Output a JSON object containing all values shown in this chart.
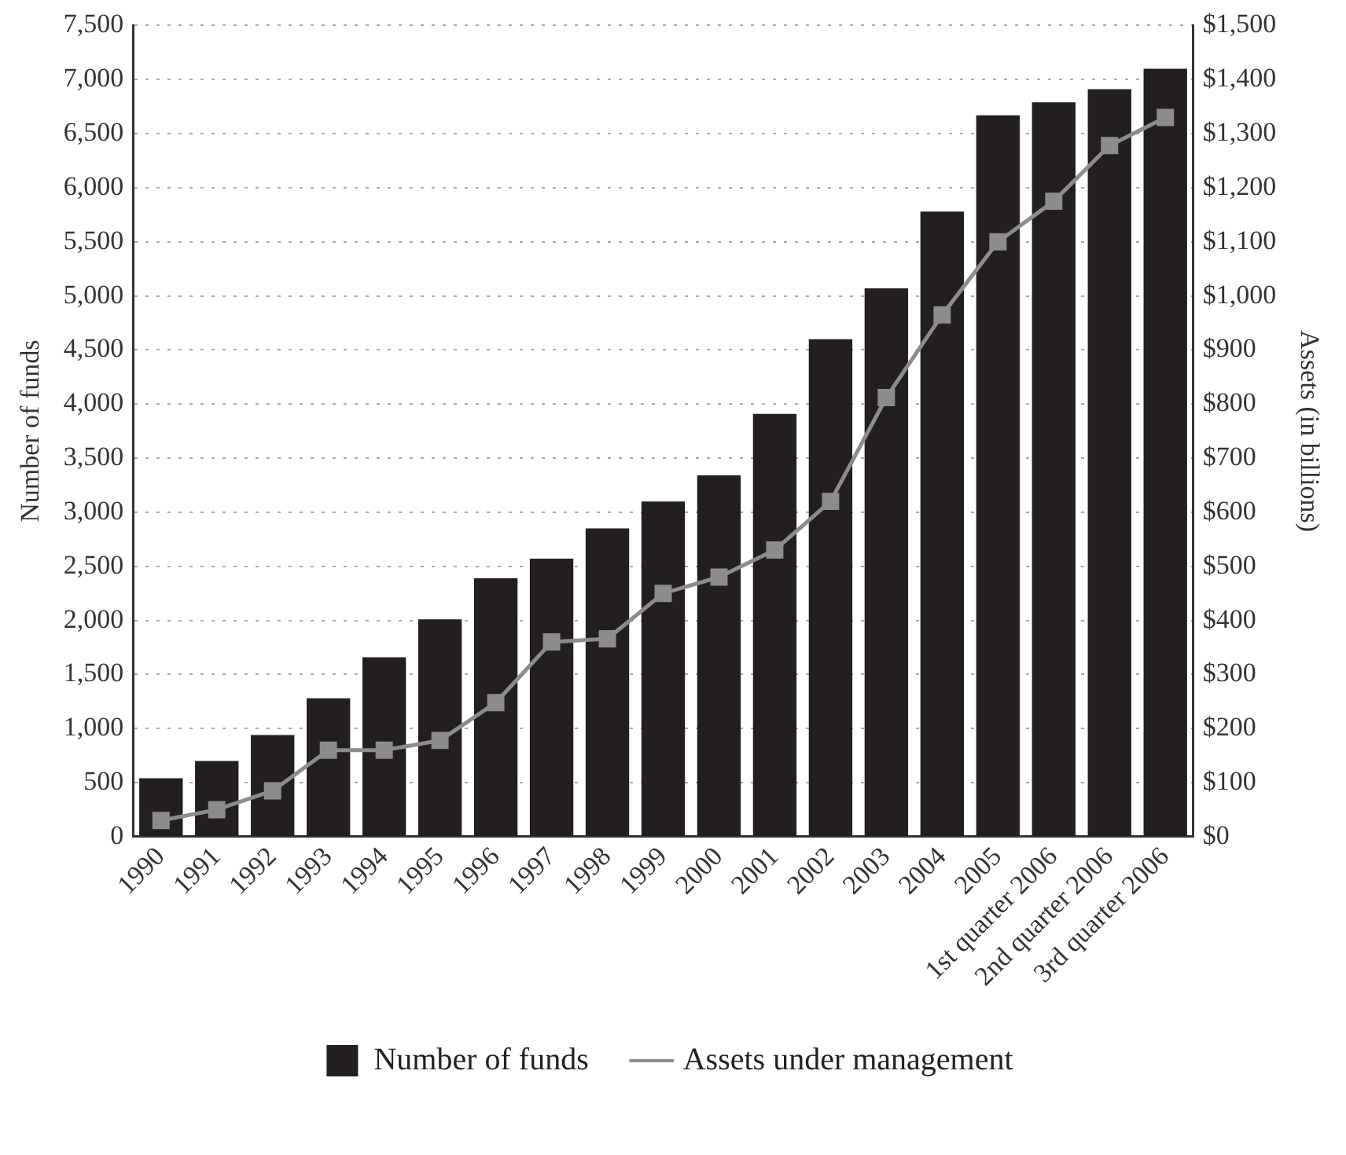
{
  "chart_data": {
    "type": "bar",
    "ylabel": "Number of funds",
    "y2label": "Assets (in billions)",
    "categories": [
      "1990",
      "1991",
      "1992",
      "1993",
      "1994",
      "1995",
      "1996",
      "1997",
      "1998",
      "1999",
      "2000",
      "2001",
      "2002",
      "2003",
      "2004",
      "2005",
      "1st quarter 2006",
      "2nd quarter 2006",
      "3rd quarter 2006"
    ],
    "series": [
      {
        "name": "Number of funds",
        "color": "#231f20",
        "values": [
          540,
          700,
          940,
          1280,
          1660,
          2010,
          2390,
          2570,
          2850,
          3100,
          3340,
          3910,
          4600,
          5070,
          5780,
          6670,
          6790,
          6910,
          7100
        ]
      },
      {
        "name": "Assets under management",
        "type": "line",
        "axis": "y2",
        "color": "#8c8c8c",
        "marker": "square",
        "values": [
          30,
          50,
          85,
          160,
          160,
          178,
          248,
          360,
          366,
          450,
          480,
          530,
          620,
          812,
          965,
          1100,
          1175,
          1278,
          1330
        ]
      }
    ],
    "ylim": [
      0,
      7500
    ],
    "yticks": [
      0,
      500,
      {
        "value": 1000,
        "label": "1,000"
      },
      {
        "value": 1500,
        "label": "1,500"
      },
      {
        "value": 2000,
        "label": "2,000"
      },
      {
        "value": 2500,
        "label": "2,500"
      },
      {
        "value": 3000,
        "label": "3,000"
      },
      {
        "value": 3500,
        "label": "3,500"
      },
      {
        "value": 4000,
        "label": "4,000"
      },
      {
        "value": 4500,
        "label": "4,500"
      },
      {
        "value": 5000,
        "label": "5,000"
      },
      {
        "value": 5500,
        "label": "5,500"
      },
      {
        "value": 6000,
        "label": "6,000"
      },
      {
        "value": 6500,
        "label": "6,500"
      },
      {
        "value": 7000,
        "label": "7,000"
      },
      {
        "value": 7500,
        "label": "7,500"
      }
    ],
    "y2lim": [
      0,
      1500
    ],
    "y2ticks": [
      {
        "value": 0,
        "label": "$0"
      },
      {
        "value": 100,
        "label": "$100"
      },
      {
        "value": 200,
        "label": "$200"
      },
      {
        "value": 300,
        "label": "$300"
      },
      {
        "value": 400,
        "label": "$400"
      },
      {
        "value": 500,
        "label": "$500"
      },
      {
        "value": 600,
        "label": "$600"
      },
      {
        "value": 700,
        "label": "$700"
      },
      {
        "value": 800,
        "label": "$800"
      },
      {
        "value": 900,
        "label": "$900"
      },
      {
        "value": 1000,
        "label": "$1,000"
      },
      {
        "value": 1100,
        "label": "$1,100"
      },
      {
        "value": 1200,
        "label": "$1,200"
      },
      {
        "value": 1300,
        "label": "$1,300"
      },
      {
        "value": 1400,
        "label": "$1,400"
      },
      {
        "value": 1500,
        "label": "$1,500"
      }
    ],
    "grid": "y",
    "legend": "bottom"
  }
}
